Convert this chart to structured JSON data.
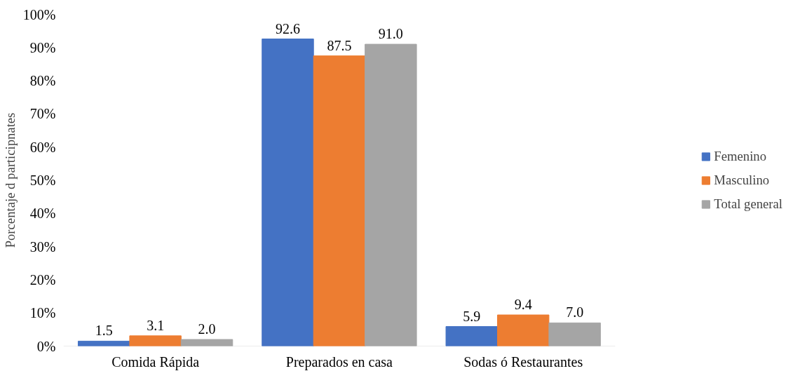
{
  "chart_data": {
    "type": "bar",
    "ylabel": "Porcentaje d participnates",
    "categories": [
      "Comida Rápida",
      "Preparados en casa",
      "Sodas ó Restaurantes"
    ],
    "series": [
      {
        "name": "Femenino",
        "color": "#4472c4",
        "values": [
          1.5,
          92.6,
          5.9
        ],
        "value_labels": [
          "1.5",
          "92.6",
          "5.9"
        ]
      },
      {
        "name": "Masculino",
        "color": "#ed7d31",
        "values": [
          3.1,
          87.5,
          9.4
        ],
        "value_labels": [
          "3.1",
          "87.5",
          "9.4"
        ]
      },
      {
        "name": "Total general",
        "color": "#a5a5a5",
        "values": [
          2.0,
          91.0,
          7.0
        ],
        "value_labels": [
          "2.0",
          "91.0",
          "7.0"
        ]
      }
    ],
    "ylim": [
      0,
      100
    ],
    "yticks": [
      {
        "value": 0,
        "label": "0%"
      },
      {
        "value": 10,
        "label": "10%"
      },
      {
        "value": 20,
        "label": "20%"
      },
      {
        "value": 30,
        "label": "30%"
      },
      {
        "value": 40,
        "label": "40%"
      },
      {
        "value": 50,
        "label": "50%"
      },
      {
        "value": 60,
        "label": "60%"
      },
      {
        "value": 70,
        "label": "70%"
      },
      {
        "value": 80,
        "label": "80%"
      },
      {
        "value": 90,
        "label": "90%"
      },
      {
        "value": 100,
        "label": "100%"
      }
    ],
    "data_labels": true,
    "grid": false,
    "legend": "right"
  }
}
